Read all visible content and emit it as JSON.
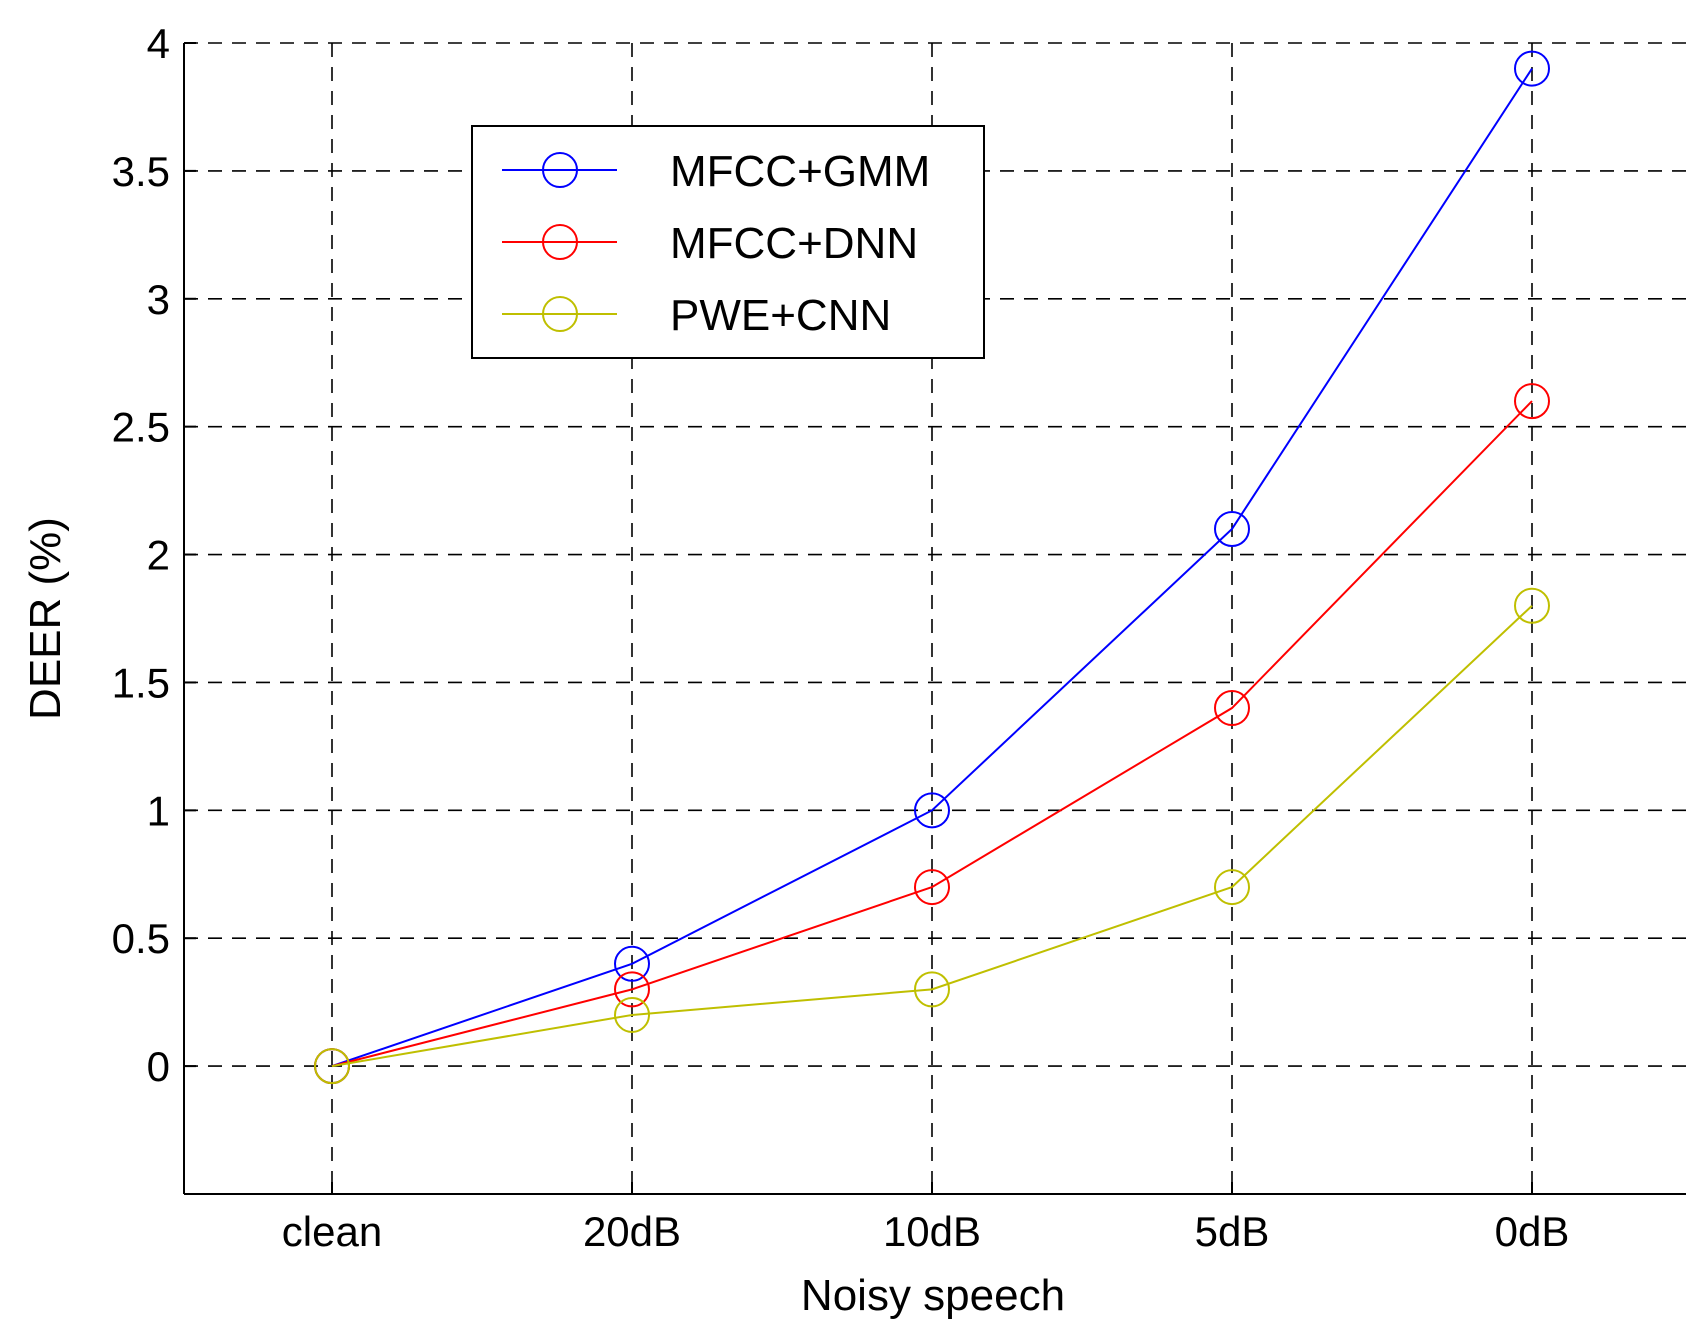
{
  "chart_data": {
    "type": "line",
    "title": "",
    "xlabel": "Noisy speech",
    "ylabel": "DEER (%)",
    "categories": [
      "clean",
      "20dB",
      "10dB",
      "5dB",
      "0dB"
    ],
    "ylim": [
      -0.5,
      4
    ],
    "yticks": [
      "0",
      "0.5",
      "1",
      "1.5",
      "2",
      "2.5",
      "3",
      "3.5",
      "4"
    ],
    "grid": true,
    "grid_style": "dashed",
    "legend_position": "upper-left-inside",
    "marker": "circle-open",
    "series": [
      {
        "name": "MFCC+GMM",
        "color": "#0000ff",
        "values": [
          0,
          0.4,
          1.0,
          2.1,
          3.9
        ]
      },
      {
        "name": "MFCC+DNN",
        "color": "#ff0000",
        "values": [
          0,
          0.3,
          0.7,
          1.4,
          2.6
        ]
      },
      {
        "name": "PWE+CNN",
        "color": "#bfbf00",
        "values": [
          0,
          0.2,
          0.3,
          0.7,
          1.8
        ]
      }
    ]
  }
}
